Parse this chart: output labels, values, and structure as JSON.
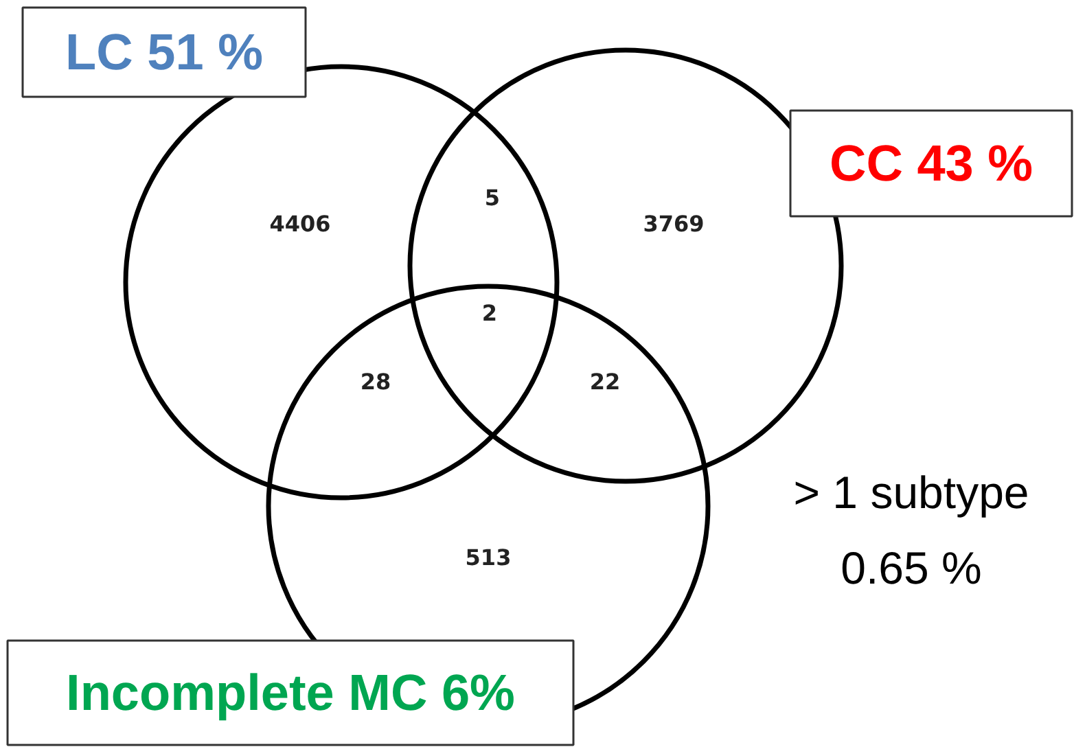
{
  "chart_data": {
    "type": "other",
    "categories": [
      null,
      null,
      null,
      null,
      null,
      null,
      null
    ],
    "values": [
      4406,
      5,
      3769,
      2,
      28,
      22,
      513
    ],
    "data_labels": true,
    "annotations": [
      "LC 51 %",
      "CC 43 %",
      "Incomplete MC 6%",
      "> 1 subtype\n0.65 %"
    ]
  }
}
